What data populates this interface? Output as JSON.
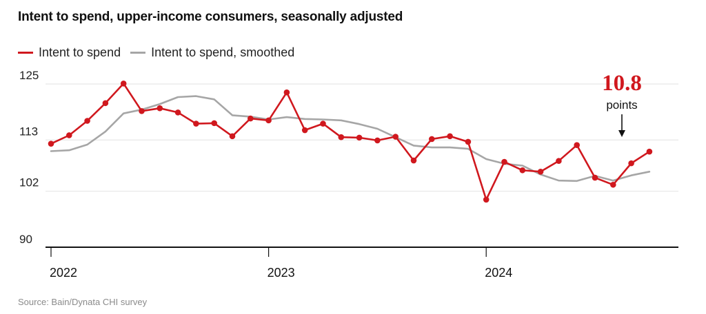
{
  "title": "Intent to spend, upper-income consumers, seasonally adjusted",
  "source": "Source: Bain/Dynata CHI survey",
  "annotation": {
    "value": "10.8",
    "unit": "points"
  },
  "colors": {
    "primary": "#d0181e",
    "smoothed": "#a6a6a6",
    "grid": "#e2e2e2",
    "axis": "#111111"
  },
  "chart_data": {
    "type": "line",
    "y_ticks": [
      90,
      102,
      113,
      125
    ],
    "ylim": [
      90,
      125
    ],
    "x_ticks": [
      "2022",
      "2023",
      "2024"
    ],
    "x_range": [
      "2022-01",
      "2024-10"
    ],
    "grid": true,
    "legend": "top-left",
    "series": [
      {
        "name": "Intent to spend",
        "color": "#d0181e",
        "markers": true,
        "x": [
          "2022-01",
          "2022-02",
          "2022-03",
          "2022-04",
          "2022-05",
          "2022-06",
          "2022-07",
          "2022-08",
          "2022-09",
          "2022-10",
          "2022-11",
          "2022-12",
          "2023-01",
          "2023-02",
          "2023-03",
          "2023-04",
          "2023-05",
          "2023-06",
          "2023-07",
          "2023-08",
          "2023-09",
          "2023-10",
          "2023-11",
          "2023-12",
          "2024-01",
          "2024-02",
          "2024-03",
          "2024-04",
          "2024-05",
          "2024-06",
          "2024-07",
          "2024-08",
          "2024-09",
          "2024-10"
        ],
        "values": [
          112.2,
          114.0,
          117.1,
          120.9,
          125.1,
          119.2,
          119.8,
          118.9,
          116.5,
          116.6,
          113.8,
          117.6,
          117.2,
          123.2,
          115.1,
          116.5,
          113.6,
          113.5,
          112.9,
          113.7,
          108.6,
          113.2,
          113.8,
          112.6,
          100.2,
          108.3,
          106.5,
          106.2,
          108.5,
          111.9,
          104.9,
          103.4,
          108.0,
          110.5
        ]
      },
      {
        "name": "Intent to spend, smoothed",
        "color": "#a6a6a6",
        "markers": false,
        "x": [
          "2022-01",
          "2022-02",
          "2022-03",
          "2022-04",
          "2022-05",
          "2022-06",
          "2022-07",
          "2022-08",
          "2022-09",
          "2022-10",
          "2022-11",
          "2022-12",
          "2023-01",
          "2023-02",
          "2023-03",
          "2023-04",
          "2023-05",
          "2023-06",
          "2023-07",
          "2023-08",
          "2023-09",
          "2023-10",
          "2023-11",
          "2023-12",
          "2024-01",
          "2024-02",
          "2024-03",
          "2024-04",
          "2024-05",
          "2024-06",
          "2024-07",
          "2024-08",
          "2024-09",
          "2024-10"
        ],
        "values": [
          110.6,
          110.8,
          112.0,
          114.8,
          118.7,
          119.5,
          120.7,
          122.2,
          122.4,
          121.7,
          118.3,
          118.0,
          117.4,
          117.9,
          117.5,
          117.4,
          117.2,
          116.4,
          115.4,
          113.6,
          111.8,
          111.4,
          111.4,
          111.1,
          108.9,
          107.9,
          107.5,
          105.6,
          104.3,
          104.2,
          105.3,
          104.3,
          105.4,
          106.2
        ]
      }
    ]
  }
}
